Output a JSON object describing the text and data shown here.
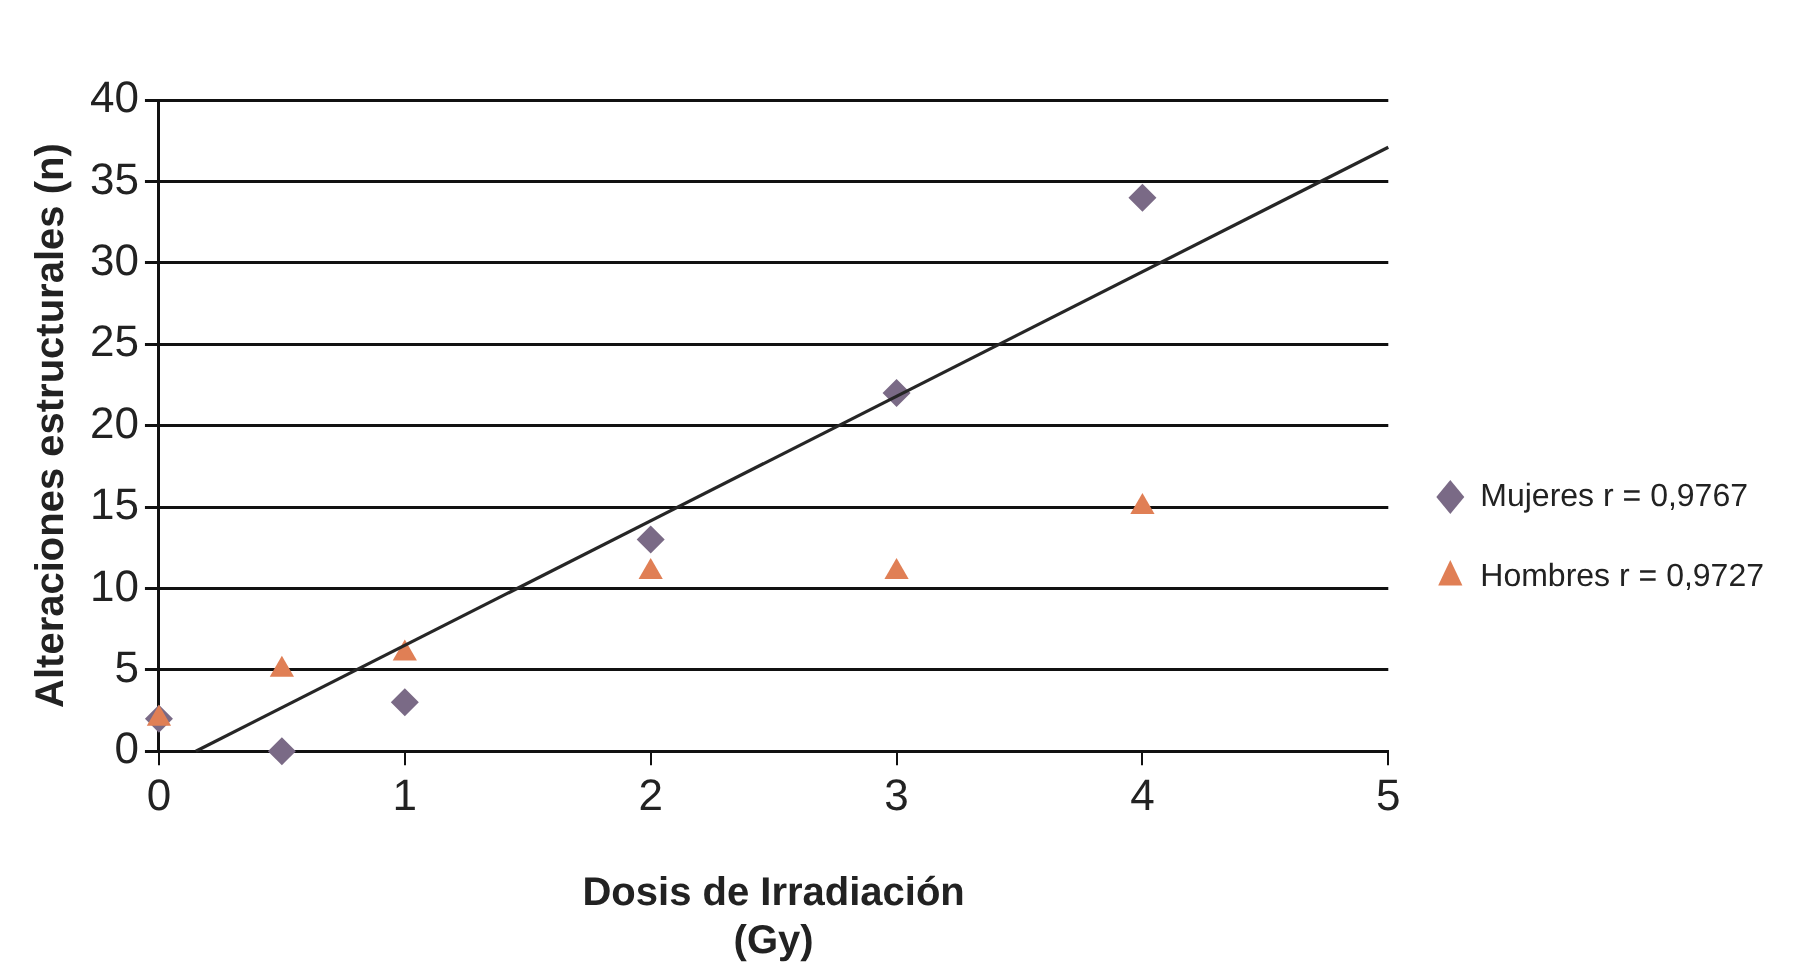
{
  "chart_data": {
    "type": "scatter",
    "xlabel": "Dosis de Irradiación\n(Gy)",
    "ylabel": "Alteraciones estructurales (n)",
    "x": [
      0,
      0.5,
      1,
      2,
      3,
      4
    ],
    "series": [
      {
        "name": "Mujeres r = 0,9767",
        "color": "#7a6a86",
        "marker": "diamond",
        "values": [
          2,
          0,
          3,
          13,
          22,
          34
        ]
      },
      {
        "name": "Hombres r = 0,9727",
        "color": "#e07f55",
        "marker": "triangle",
        "values": [
          2,
          5,
          6,
          11,
          11,
          15
        ]
      },
      {
        "type": "line",
        "color": "#262626",
        "marker": "none",
        "line_style": "solid",
        "x": [
          0.15,
          5
        ],
        "values": [
          0,
          37.1
        ]
      }
    ],
    "xlim": [
      0,
      5
    ],
    "xticks": [
      0,
      1,
      2,
      3,
      4,
      5
    ],
    "ylim": [
      0,
      40
    ],
    "yticks": [
      0,
      5,
      10,
      15,
      20,
      25,
      30,
      35,
      40
    ],
    "grid": "y",
    "legend": "right"
  }
}
